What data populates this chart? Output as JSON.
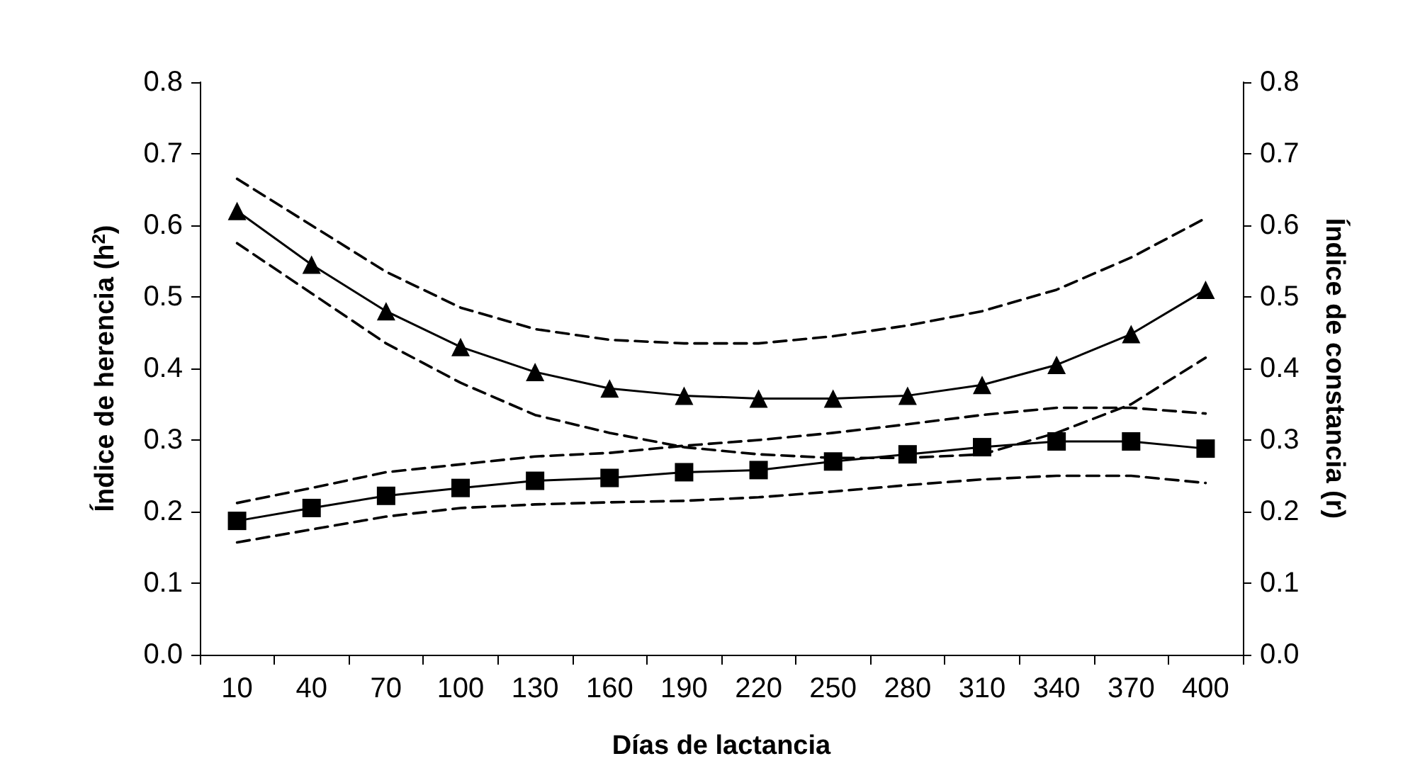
{
  "chart_data": {
    "type": "line",
    "xlabel": "Días de lactancia",
    "ylabel": "Índice de herencia (h$^{2}$)",
    "y2label": "Índice de constancia (r)",
    "categories": [
      "10",
      "40",
      "70",
      "100",
      "130",
      "160",
      "190",
      "220",
      "250",
      "280",
      "310",
      "340",
      "370",
      "400"
    ],
    "ylim": [
      0,
      0.8
    ],
    "yticks": [
      {
        "value": 0,
        "label": "0.0"
      },
      {
        "value": 0.1,
        "label": "0.1"
      },
      {
        "value": 0.2,
        "label": "0.2"
      },
      {
        "value": 0.3,
        "label": "0.3"
      },
      {
        "value": 0.4,
        "label": "0.4"
      },
      {
        "value": 0.5,
        "label": "0.5"
      },
      {
        "value": 0.6,
        "label": "0.6"
      },
      {
        "value": 0.7,
        "label": "0.7"
      },
      {
        "value": 0.8,
        "label": "0.8"
      }
    ],
    "y2lim": [
      0,
      0.8
    ],
    "y2ticks": [
      {
        "value": 0,
        "label": "0.0"
      },
      {
        "value": 0.1,
        "label": "0.1"
      },
      {
        "value": 0.2,
        "label": "0.2"
      },
      {
        "value": 0.3,
        "label": "0.3"
      },
      {
        "value": 0.4,
        "label": "0.4"
      },
      {
        "value": 0.5,
        "label": "0.5"
      },
      {
        "value": 0.6,
        "label": "0.6"
      },
      {
        "value": 0.7,
        "label": "0.7"
      },
      {
        "value": 0.8,
        "label": "0.8"
      }
    ],
    "grid": false,
    "series": [
      {
        "color": "#000000",
        "marker": "triangle",
        "line_style": "solid",
        "values": [
          0.62,
          0.545,
          0.48,
          0.43,
          0.395,
          0.372,
          0.362,
          0.358,
          0.358,
          0.362,
          0.377,
          0.405,
          0.448,
          0.51
        ]
      },
      {
        "color": "#000000",
        "marker": "none",
        "line_style": "dashed",
        "values": [
          0.665,
          0.6,
          0.535,
          0.485,
          0.455,
          0.44,
          0.435,
          0.435,
          0.445,
          0.46,
          0.48,
          0.51,
          0.555,
          0.61
        ]
      },
      {
        "color": "#000000",
        "marker": "none",
        "line_style": "dashed",
        "values": [
          0.575,
          0.505,
          0.435,
          0.38,
          0.335,
          0.31,
          0.29,
          0.28,
          0.275,
          0.275,
          0.28,
          0.31,
          0.35,
          0.415
        ]
      },
      {
        "color": "#000000",
        "marker": "square",
        "line_style": "solid",
        "values": [
          0.187,
          0.205,
          0.222,
          0.233,
          0.243,
          0.247,
          0.255,
          0.258,
          0.27,
          0.28,
          0.29,
          0.298,
          0.298,
          0.288
        ]
      },
      {
        "color": "#000000",
        "marker": "none",
        "line_style": "dashed",
        "values": [
          0.212,
          0.233,
          0.255,
          0.266,
          0.277,
          0.282,
          0.292,
          0.3,
          0.31,
          0.322,
          0.335,
          0.345,
          0.345,
          0.337
        ]
      },
      {
        "color": "#000000",
        "marker": "none",
        "line_style": "dashed",
        "values": [
          0.157,
          0.175,
          0.193,
          0.205,
          0.21,
          0.213,
          0.215,
          0.22,
          0.228,
          0.237,
          0.245,
          0.25,
          0.25,
          0.24
        ]
      }
    ]
  }
}
